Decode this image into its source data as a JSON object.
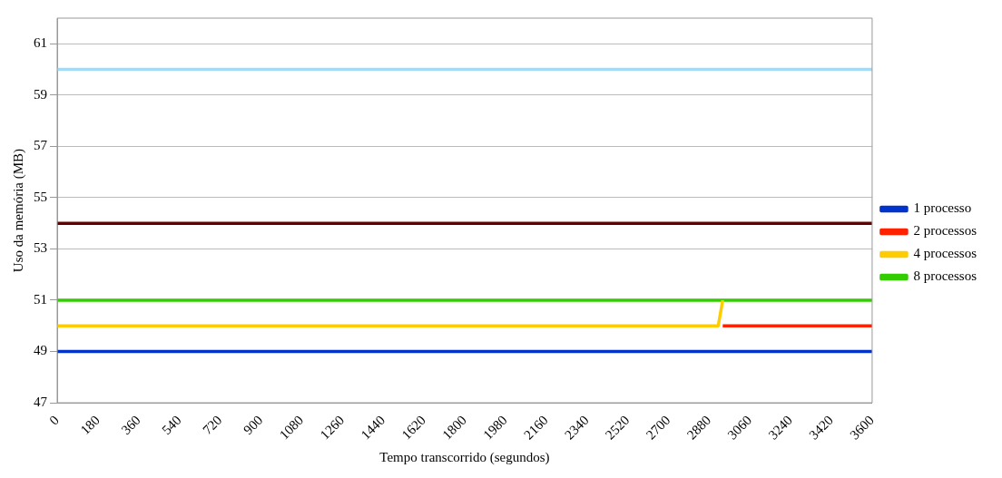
{
  "chart_data": {
    "type": "line",
    "xlabel": "Tempo transcorrido (segundos)",
    "ylabel": "Uso da memória (MB)",
    "xlim": [
      0,
      3600
    ],
    "xticks": [
      0,
      180,
      360,
      540,
      720,
      900,
      1080,
      1260,
      1440,
      1620,
      1800,
      1980,
      2160,
      2340,
      2520,
      2700,
      2880,
      3060,
      3240,
      3420,
      3600
    ],
    "ylim": [
      47,
      62
    ],
    "yticks": [
      47,
      49,
      51,
      53,
      55,
      57,
      59,
      61
    ],
    "grid": "y",
    "legend": "right",
    "marker": "none",
    "line_style": "solid",
    "series": [
      {
        "name": "1 processo",
        "color": "#0033cc",
        "x": [
          0,
          3600
        ],
        "values": [
          49,
          49
        ]
      },
      {
        "name": "2 processos",
        "color": "#ff2200",
        "x": [
          2940,
          3600
        ],
        "values": [
          50,
          50
        ]
      },
      {
        "name": "4 processos",
        "color": "#ffcc00",
        "x": [
          0,
          2920,
          2940
        ],
        "values": [
          50,
          50,
          51
        ]
      },
      {
        "name": "8 processos",
        "color": "#33cc00",
        "x": [
          0,
          3600
        ],
        "values": [
          51,
          51
        ]
      },
      {
        "color": "#660000",
        "x": [
          0,
          3600
        ],
        "values": [
          54,
          54
        ]
      },
      {
        "color": "#99ddff",
        "x": [
          0,
          3600
        ],
        "values": [
          60,
          60
        ]
      }
    ]
  }
}
